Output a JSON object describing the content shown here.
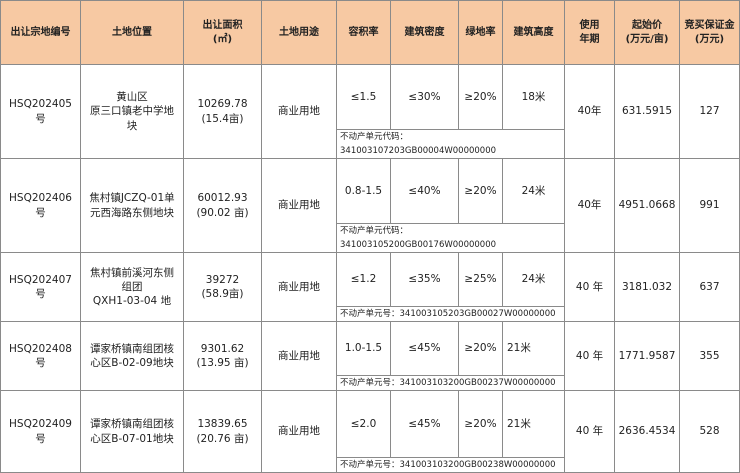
{
  "headers": {
    "id": "出让宗地编号",
    "location": "土地位置",
    "area": "出让面积\n(㎡)",
    "usage": "土地用途",
    "far": "容积率",
    "density": "建筑密度",
    "green": "绿地率",
    "height": "建筑高度",
    "term": "使用\n年期",
    "price": "起始价\n(万元/亩)",
    "deposit": "竞买保证金\n(万元)"
  },
  "rows": [
    {
      "id": "HSQ202405 号",
      "location": "黄山区\n原三口镇老中学地\n块",
      "area": "10269.78\n(15.4亩)",
      "usage": "商业用地",
      "far": "≤1.5",
      "density": "≤30%",
      "green": "≥20%",
      "height": "18米",
      "code": "不动产单元代码：341003107203GB00004W00000000",
      "term": "40年",
      "price": "631.5915",
      "deposit": "127"
    },
    {
      "id": "HSQ202406 号",
      "location": "焦村镇JCZQ-01单\n元西海路东侧地块",
      "area": "60012.93\n(90.02 亩)",
      "usage": "商业用地",
      "far": "0.8-1.5",
      "density": "≤40%",
      "green": "≥20%",
      "height": "24米",
      "code": "不动产单元代码：341003105200GB00176W00000000",
      "term": "40年",
      "price": "4951.0668",
      "deposit": "991"
    },
    {
      "id": "HSQ202407 号",
      "location": "焦村镇前溪河东侧\n组团\nQXH1-03-04 地",
      "area": "39272\n(58.9亩)",
      "usage": "商业用地",
      "far": "≤1.2",
      "density": "≤35%",
      "green": "≥25%",
      "height": "24米",
      "code": "不动产单元号：341003105203GB00027W00000000",
      "term": "40 年",
      "price": "3181.032",
      "deposit": "637"
    },
    {
      "id": "HSQ202408 号",
      "location": "谭家桥镇南组团核\n心区B-02-09地块",
      "area": "9301.62\n(13.95 亩)",
      "usage": "商业用地",
      "far": "1.0-1.5",
      "density": "≤45%",
      "green": "≥20%",
      "height": "21米",
      "code": "不动产单元号：341003103200GB00237W00000000",
      "term": "40 年",
      "price": "1771.9587",
      "deposit": "355"
    },
    {
      "id": "HSQ202409 号",
      "location": "谭家桥镇南组团核\n心区B-07-01地块",
      "area": "13839.65\n(20.76 亩)",
      "usage": "商业用地",
      "far": "≤2.0",
      "density": "≤45%",
      "green": "≥20%",
      "height": "21米",
      "code": "不动产单元号：341003103200GB00238W00000000",
      "term": "40 年",
      "price": "2636.4534",
      "deposit": "528"
    }
  ]
}
